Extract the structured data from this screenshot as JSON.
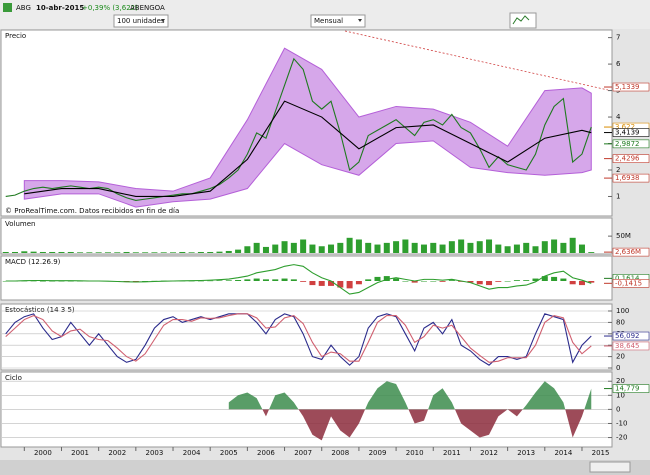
{
  "toolbar": {
    "symbol": "ABG",
    "date": "10-abr-2015",
    "change": "+0,39% (3,622)",
    "name": "ABENGOA",
    "quantity": "100 unidades",
    "period": "Mensual"
  },
  "chart_data": [
    {
      "type": "line",
      "title": "Precio",
      "note": "© ProRealTime.com. Datos recibidos en fin de día",
      "xlim": [
        1999.4,
        2015.7
      ],
      "ylim": [
        0.3,
        7.25
      ],
      "yticks": [
        1,
        2,
        3,
        4,
        5,
        6,
        7
      ],
      "x": [
        1999.5,
        1999.75,
        2000,
        2000.25,
        2000.5,
        2000.75,
        2001,
        2001.25,
        2001.5,
        2001.75,
        2002,
        2002.25,
        2002.5,
        2002.75,
        2003,
        2003.25,
        2003.5,
        2003.75,
        2004,
        2004.25,
        2004.5,
        2004.75,
        2005,
        2005.25,
        2005.5,
        2005.75,
        2006,
        2006.25,
        2006.5,
        2006.75,
        2007,
        2007.25,
        2007.5,
        2007.75,
        2008,
        2008.25,
        2008.5,
        2008.75,
        2009,
        2009.25,
        2009.5,
        2009.75,
        2010,
        2010.25,
        2010.5,
        2010.75,
        2011,
        2011.25,
        2011.5,
        2011.75,
        2012,
        2012.25,
        2012.5,
        2012.75,
        2013,
        2013.25,
        2013.5,
        2013.75,
        2014,
        2014.25,
        2014.5,
        2014.75,
        2015,
        2015.25
      ],
      "band": {
        "color": "#b45fd8",
        "x": [
          2000,
          2001,
          2002,
          2003,
          2004,
          2005,
          2006,
          2007,
          2008,
          2009,
          2010,
          2011,
          2012,
          2013,
          2014,
          2015,
          2015.25
        ],
        "upper": [
          1.6,
          1.6,
          1.55,
          1.3,
          1.2,
          1.7,
          3.9,
          6.6,
          5.8,
          4.0,
          4.4,
          4.3,
          3.8,
          2.9,
          5.0,
          5.1,
          4.9
        ],
        "lower": [
          0.9,
          1.1,
          1.1,
          0.6,
          0.8,
          0.9,
          1.3,
          3.0,
          2.2,
          1.8,
          3.0,
          3.1,
          2.1,
          1.9,
          1.8,
          1.9,
          2.0
        ]
      },
      "series": [
        {
          "color": "#1f7a1f",
          "values": [
            1.0,
            1.05,
            1.2,
            1.3,
            1.35,
            1.3,
            1.35,
            1.4,
            1.35,
            1.3,
            1.35,
            1.3,
            1.1,
            0.95,
            0.85,
            0.9,
            0.95,
            1.0,
            1.05,
            1.1,
            1.1,
            1.2,
            1.3,
            1.45,
            1.7,
            2.0,
            2.6,
            3.4,
            3.2,
            4.2,
            5.2,
            6.2,
            5.8,
            4.6,
            4.3,
            4.6,
            3.4,
            2.0,
            2.3,
            3.3,
            3.5,
            3.7,
            3.9,
            3.6,
            3.3,
            3.8,
            3.9,
            3.7,
            4.1,
            3.6,
            3.4,
            2.8,
            2.1,
            2.5,
            2.2,
            2.1,
            2.0,
            2.6,
            3.7,
            4.4,
            4.7,
            2.3,
            2.6,
            3.622
          ]
        },
        {
          "color": "#000000",
          "x": [
            2000,
            2001,
            2002,
            2003,
            2004,
            2005,
            2006,
            2007,
            2008,
            2009,
            2010,
            2011,
            2012,
            2013,
            2014,
            2015,
            2015.25
          ],
          "values": [
            1.1,
            1.3,
            1.3,
            1.0,
            1.0,
            1.2,
            2.4,
            4.6,
            4.0,
            2.8,
            3.6,
            3.7,
            3.0,
            2.3,
            3.2,
            3.5,
            3.41
          ]
        }
      ],
      "labels": [
        {
          "value": 5.1339,
          "label": "5,1339",
          "color": "#c0392b"
        },
        {
          "value": 3.622,
          "label": "3,622",
          "color": "#d98c00"
        },
        {
          "value": 3.4139,
          "label": "3,4139",
          "color": "#000000"
        },
        {
          "value": 2.9872,
          "label": "2,9872",
          "color": "#1f7a1f"
        },
        {
          "value": 2.4296,
          "label": "2,4296",
          "color": "#c0392b"
        },
        {
          "value": 1.6938,
          "label": "1,6938",
          "color": "#c0392b"
        }
      ]
    },
    {
      "type": "bar",
      "title": "Volumen",
      "color": "#2e9e2e",
      "xlim": [
        1999.4,
        2015.7
      ],
      "ylim": [
        0,
        80
      ],
      "yticks": [
        {
          "value": 50,
          "label": "50M"
        }
      ],
      "x": [
        1999.5,
        1999.75,
        2000,
        2000.25,
        2000.5,
        2000.75,
        2001,
        2001.25,
        2001.5,
        2001.75,
        2002,
        2002.25,
        2002.5,
        2002.75,
        2003,
        2003.25,
        2003.5,
        2003.75,
        2004,
        2004.25,
        2004.5,
        2004.75,
        2005,
        2005.25,
        2005.5,
        2005.75,
        2006,
        2006.25,
        2006.5,
        2006.75,
        2007,
        2007.25,
        2007.5,
        2007.75,
        2008,
        2008.25,
        2008.5,
        2008.75,
        2009,
        2009.25,
        2009.5,
        2009.75,
        2010,
        2010.25,
        2010.5,
        2010.75,
        2011,
        2011.25,
        2011.5,
        2011.75,
        2012,
        2012.25,
        2012.5,
        2012.75,
        2013,
        2013.25,
        2013.5,
        2013.75,
        2014,
        2014.25,
        2014.5,
        2014.75,
        2015,
        2015.25
      ],
      "values": [
        3,
        3,
        5,
        4,
        3,
        3,
        3,
        3,
        2,
        2,
        2,
        2,
        2,
        3,
        2,
        2,
        2,
        2,
        2,
        3,
        2,
        3,
        3,
        4,
        6,
        10,
        20,
        30,
        18,
        25,
        35,
        30,
        40,
        25,
        20,
        25,
        30,
        45,
        40,
        30,
        25,
        30,
        35,
        40,
        30,
        25,
        30,
        25,
        35,
        40,
        30,
        35,
        40,
        25,
        20,
        25,
        30,
        20,
        35,
        40,
        30,
        45,
        25,
        2.636
      ],
      "labels": [
        {
          "value": 2.636,
          "label": "2,636M",
          "color": "#c0392b"
        }
      ]
    },
    {
      "type": "bar",
      "title": "MACD (12.26.9)",
      "colors": [
        "#2e9e2e",
        "#d04040"
      ],
      "xlim": [
        1999.4,
        2015.7
      ],
      "ylim": [
        -1.1,
        1.1
      ],
      "x": [
        1999.5,
        1999.75,
        2000,
        2000.25,
        2000.5,
        2000.75,
        2001,
        2001.25,
        2001.5,
        2001.75,
        2002,
        2002.25,
        2002.5,
        2002.75,
        2003,
        2003.25,
        2003.5,
        2003.75,
        2004,
        2004.25,
        2004.5,
        2004.75,
        2005,
        2005.25,
        2005.5,
        2005.75,
        2006,
        2006.25,
        2006.5,
        2006.75,
        2007,
        2007.25,
        2007.5,
        2007.75,
        2008,
        2008.25,
        2008.5,
        2008.75,
        2009,
        2009.25,
        2009.5,
        2009.75,
        2010,
        2010.25,
        2010.5,
        2010.75,
        2011,
        2011.25,
        2011.5,
        2011.75,
        2012,
        2012.25,
        2012.5,
        2012.75,
        2013,
        2013.25,
        2013.5,
        2013.75,
        2014,
        2014.25,
        2014.5,
        2014.75,
        2015,
        2015.25
      ],
      "values": [
        0,
        0,
        0.01,
        0.01,
        0,
        0,
        0,
        0,
        0,
        -0.01,
        -0.01,
        -0.01,
        -0.02,
        -0.02,
        -0.01,
        0,
        0.01,
        0.02,
        0.01,
        0.01,
        0.01,
        0.01,
        0.02,
        0.03,
        0.04,
        0.06,
        0.1,
        0.15,
        0.1,
        0.1,
        0.15,
        0.1,
        -0.05,
        -0.25,
        -0.3,
        -0.3,
        -0.4,
        -0.45,
        -0.2,
        0.1,
        0.25,
        0.3,
        0.15,
        0,
        -0.1,
        0,
        0,
        -0.05,
        0.05,
        -0.05,
        -0.1,
        -0.2,
        -0.25,
        -0.05,
        0,
        0.05,
        0.05,
        0.15,
        0.3,
        0.25,
        0.15,
        -0.2,
        -0.25,
        -0.1
      ],
      "series": [
        {
          "color": "#2e9e2e",
          "values": [
            0,
            0,
            0.02,
            0.03,
            0.03,
            0.02,
            0.02,
            0.02,
            0.01,
            0,
            0,
            -0.01,
            -0.03,
            -0.05,
            -0.06,
            -0.05,
            -0.03,
            -0.01,
            0,
            0.01,
            0.02,
            0.03,
            0.05,
            0.08,
            0.12,
            0.2,
            0.3,
            0.5,
            0.6,
            0.7,
            0.9,
            1.0,
            0.9,
            0.5,
            0.2,
            0,
            -0.4,
            -0.8,
            -0.7,
            -0.4,
            -0.1,
            0.1,
            0.2,
            0.1,
            0,
            0.1,
            0.1,
            0.05,
            0.1,
            0,
            -0.1,
            -0.3,
            -0.5,
            -0.4,
            -0.4,
            -0.3,
            -0.25,
            -0.05,
            0.3,
            0.5,
            0.6,
            0.2,
            0.05,
            -0.1415
          ]
        }
      ],
      "labels": [
        {
          "value": 0.1614,
          "label": "0,1614",
          "color": "#1f7a1f"
        },
        {
          "value": -0.1415,
          "label": "-0,1415",
          "color": "#c0392b"
        }
      ]
    },
    {
      "type": "line",
      "title": "Estocástico (14 3 5)",
      "grid": true,
      "xlim": [
        1999.4,
        2015.7
      ],
      "ylim": [
        0,
        100
      ],
      "yticks": [
        0,
        20,
        40,
        60,
        80,
        100
      ],
      "x": [
        1999.5,
        1999.75,
        2000,
        2000.25,
        2000.5,
        2000.75,
        2001,
        2001.25,
        2001.5,
        2001.75,
        2002,
        2002.25,
        2002.5,
        2002.75,
        2003,
        2003.25,
        2003.5,
        2003.75,
        2004,
        2004.25,
        2004.5,
        2004.75,
        2005,
        2005.25,
        2005.5,
        2005.75,
        2006,
        2006.25,
        2006.5,
        2006.75,
        2007,
        2007.25,
        2007.5,
        2007.75,
        2008,
        2008.25,
        2008.5,
        2008.75,
        2009,
        2009.25,
        2009.5,
        2009.75,
        2010,
        2010.25,
        2010.5,
        2010.75,
        2011,
        2011.25,
        2011.5,
        2011.75,
        2012,
        2012.25,
        2012.5,
        2012.75,
        2013,
        2013.25,
        2013.5,
        2013.75,
        2014,
        2014.25,
        2014.5,
        2014.75,
        2015,
        2015.25
      ],
      "series": [
        {
          "color": "#2b2b8c",
          "values": [
            60,
            80,
            90,
            95,
            70,
            50,
            55,
            80,
            60,
            40,
            60,
            40,
            20,
            10,
            15,
            40,
            70,
            85,
            90,
            80,
            85,
            90,
            85,
            90,
            95,
            95,
            95,
            80,
            60,
            85,
            95,
            90,
            60,
            20,
            15,
            40,
            20,
            5,
            20,
            70,
            90,
            95,
            90,
            60,
            30,
            70,
            80,
            60,
            85,
            40,
            30,
            15,
            5,
            20,
            20,
            15,
            20,
            60,
            95,
            90,
            85,
            10,
            40,
            56.092
          ]
        },
        {
          "color": "#d06070",
          "values": [
            55,
            70,
            85,
            92,
            85,
            65,
            55,
            65,
            68,
            55,
            50,
            48,
            35,
            20,
            12,
            25,
            50,
            75,
            85,
            85,
            82,
            88,
            87,
            88,
            92,
            95,
            95,
            88,
            70,
            72,
            88,
            92,
            78,
            45,
            20,
            28,
            25,
            12,
            12,
            45,
            80,
            92,
            92,
            75,
            45,
            55,
            75,
            70,
            75,
            55,
            35,
            22,
            10,
            12,
            18,
            18,
            18,
            40,
            80,
            92,
            88,
            45,
            25,
            38.645
          ]
        }
      ],
      "labels": [
        {
          "value": 56.092,
          "label": "56,092",
          "color": "#2b2b8c"
        },
        {
          "value": 38.645,
          "label": "38,645",
          "color": "#d06070"
        }
      ]
    },
    {
      "type": "area",
      "title": "Ciclo",
      "colors": [
        "#3c8c4c",
        "#8c2c3c"
      ],
      "grid": true,
      "xlim": [
        1999.4,
        2015.7
      ],
      "ylim": [
        -26,
        23
      ],
      "yticks": [
        -20,
        -10,
        0,
        10,
        20
      ],
      "xticks": [
        2000,
        2001,
        2002,
        2003,
        2004,
        2005,
        2006,
        2007,
        2008,
        2009,
        2010,
        2011,
        2012,
        2013,
        2014,
        2015
      ],
      "x": [
        1999.5,
        1999.75,
        2000,
        2000.25,
        2000.5,
        2000.75,
        2001,
        2001.25,
        2001.5,
        2001.75,
        2002,
        2002.25,
        2002.5,
        2002.75,
        2003,
        2003.25,
        2003.5,
        2003.75,
        2004,
        2004.25,
        2004.5,
        2004.75,
        2005,
        2005.25,
        2005.5,
        2005.75,
        2006,
        2006.25,
        2006.5,
        2006.75,
        2007,
        2007.25,
        2007.5,
        2007.75,
        2008,
        2008.25,
        2008.5,
        2008.75,
        2009,
        2009.25,
        2009.5,
        2009.75,
        2010,
        2010.25,
        2010.5,
        2010.75,
        2011,
        2011.25,
        2011.5,
        2011.75,
        2012,
        2012.25,
        2012.5,
        2012.75,
        2013,
        2013.25,
        2013.5,
        2013.75,
        2014,
        2014.25,
        2014.5,
        2014.75,
        2015,
        2015.25
      ],
      "values": [
        null,
        null,
        null,
        null,
        null,
        null,
        null,
        null,
        null,
        null,
        null,
        null,
        null,
        null,
        null,
        null,
        null,
        null,
        null,
        null,
        null,
        null,
        null,
        null,
        5,
        10,
        12,
        8,
        -5,
        10,
        12,
        5,
        -5,
        -18,
        -22,
        -5,
        -15,
        -20,
        -10,
        5,
        15,
        20,
        18,
        5,
        -10,
        -8,
        10,
        15,
        5,
        -10,
        -15,
        -20,
        -18,
        -5,
        0,
        -5,
        3,
        12,
        20,
        15,
        5,
        -20,
        -5,
        14.779
      ],
      "labels": [
        {
          "value": 14.779,
          "label": "14,779",
          "color": "#1f7a1f"
        }
      ]
    }
  ]
}
